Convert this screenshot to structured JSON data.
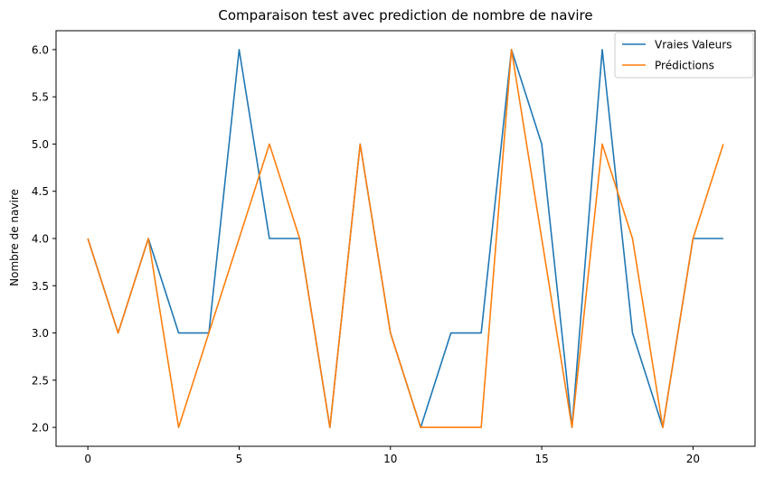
{
  "chart_data": {
    "type": "line",
    "title": "Comparaison test avec prediction de nombre de navire",
    "xlabel": "",
    "ylabel": "Nombre de navire",
    "xlim": [
      -1.05,
      22.05
    ],
    "ylim": [
      1.8,
      6.2
    ],
    "xticks": [
      0,
      5,
      10,
      15,
      20
    ],
    "xtick_labels": [
      "0",
      "5",
      "10",
      "15",
      "20"
    ],
    "yticks": [
      2.0,
      2.5,
      3.0,
      3.5,
      4.0,
      4.5,
      5.0,
      5.5,
      6.0
    ],
    "ytick_labels": [
      "2.0",
      "2.5",
      "3.0",
      "3.5",
      "4.0",
      "4.5",
      "5.0",
      "5.5",
      "6.0"
    ],
    "grid": false,
    "legend_position": "top-right",
    "x": [
      0,
      1,
      2,
      3,
      4,
      5,
      6,
      7,
      8,
      9,
      10,
      11,
      12,
      13,
      14,
      15,
      16,
      17,
      18,
      19,
      20,
      21
    ],
    "series": [
      {
        "name": "Vraies Valeurs",
        "color": "#1f77b4",
        "values": [
          4,
          3,
          4,
          3,
          3,
          6,
          4,
          4,
          2,
          5,
          3,
          2,
          3,
          3,
          6,
          5,
          2,
          6,
          3,
          2,
          4,
          4
        ]
      },
      {
        "name": "Prédictions",
        "color": "#ff7f0e",
        "values": [
          4,
          3,
          4,
          2,
          3,
          4,
          5,
          4,
          2,
          5,
          3,
          2,
          2,
          2,
          6,
          4,
          2,
          5,
          4,
          2,
          4,
          5
        ]
      }
    ]
  }
}
